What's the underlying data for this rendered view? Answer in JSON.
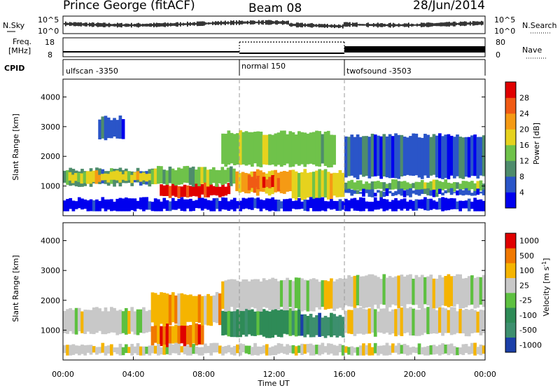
{
  "header": {
    "station": "Prince George (fitACF)",
    "beam": "Beam 08",
    "date": "28/Jun/2014"
  },
  "sky_panel": {
    "left_label": "N.Sky",
    "right_label": "N.Search",
    "left_ticks": [
      "10^5",
      "10^0"
    ],
    "right_ticks": [
      "10^5",
      "10^0"
    ]
  },
  "freq_panel": {
    "left_label_1": "Freq.",
    "left_label_2": "[MHz]",
    "right_label": "Nave",
    "left_ticks": [
      "18",
      "8"
    ],
    "right_ticks": [
      "80",
      "0"
    ]
  },
  "cpid_panel": {
    "label": "CPID",
    "modes": [
      "ulfscan -3350",
      "normal 150",
      "twofsound -3503"
    ]
  },
  "x_axis": {
    "label": "Time UT",
    "ticks": [
      "00:00",
      "04:00",
      "08:00",
      "12:00",
      "16:00",
      "20:00",
      "00:00"
    ]
  },
  "chart_data": [
    {
      "type": "heatmap",
      "name": "power",
      "ylabel": "Slant Range [km]",
      "y_ticks": [
        "1000",
        "2000",
        "3000",
        "4000"
      ],
      "colorbar_label": "Power [dB]",
      "colorbar_ticks": [
        "4",
        "8",
        "12",
        "16",
        "20",
        "24",
        "28"
      ],
      "colors": [
        "#0000ee",
        "#2a55c8",
        "#4e8c6c",
        "#6fc24a",
        "#e6d21e",
        "#f59a14",
        "#f05a14",
        "#e00000"
      ],
      "bands": [
        {
          "t0": 0.0,
          "t1": 5.5,
          "r0": 1050,
          "r1": 1550,
          "level": 2
        },
        {
          "t0": 0.3,
          "t1": 5.0,
          "r0": 1150,
          "r1": 1450,
          "level": 4
        },
        {
          "t0": 5.5,
          "t1": 9.5,
          "r0": 650,
          "r1": 1050,
          "level": 7
        },
        {
          "t0": 5.0,
          "t1": 9.8,
          "r0": 1050,
          "r1": 1600,
          "level": 3
        },
        {
          "t0": 9.8,
          "t1": 13.0,
          "r0": 750,
          "r1": 1500,
          "level": 5
        },
        {
          "t0": 10.5,
          "t1": 12.5,
          "r0": 900,
          "r1": 1300,
          "level": 6
        },
        {
          "t0": 13.0,
          "t1": 16.0,
          "r0": 600,
          "r1": 1500,
          "level": 4
        },
        {
          "t0": 16.0,
          "t1": 24.0,
          "r0": 850,
          "r1": 1150,
          "level": 3
        },
        {
          "t0": 16.0,
          "t1": 24.0,
          "r0": 700,
          "r1": 850,
          "level": 1
        },
        {
          "t0": 2.0,
          "t1": 3.5,
          "r0": 2600,
          "r1": 3300,
          "level": 1
        },
        {
          "t0": 9.0,
          "t1": 15.5,
          "r0": 1700,
          "r1": 2800,
          "level": 3
        },
        {
          "t0": 16.0,
          "t1": 24.0,
          "r0": 1300,
          "r1": 2700,
          "level": 1
        },
        {
          "t0": 0.0,
          "t1": 24.0,
          "r0": 180,
          "r1": 550,
          "level": 0
        }
      ]
    },
    {
      "type": "heatmap",
      "name": "velocity",
      "ylabel": "Slant Range [km]",
      "y_ticks": [
        "1000",
        "2000",
        "3000",
        "4000"
      ],
      "colorbar_label": "Velocity [m s^-1]",
      "colorbar_ticks": [
        "1000",
        "500",
        "100",
        "25",
        "-25",
        "-100",
        "-500",
        "-1000"
      ],
      "colors": [
        "#1b3fa8",
        "#3d8f6e",
        "#2e8b57",
        "#5dc040",
        "#c8c8c8",
        "#f5b400",
        "#f07800",
        "#e00000"
      ],
      "bands": [
        {
          "t0": 0.0,
          "t1": 5.0,
          "r0": 900,
          "r1": 1700,
          "level": 4
        },
        {
          "t0": 5.0,
          "t1": 8.0,
          "r0": 500,
          "r1": 1200,
          "level": 6
        },
        {
          "t0": 5.0,
          "t1": 9.0,
          "r0": 1200,
          "r1": 2200,
          "level": 5
        },
        {
          "t0": 9.0,
          "t1": 13.5,
          "r0": 800,
          "r1": 1700,
          "level": 2
        },
        {
          "t0": 13.5,
          "t1": 16.0,
          "r0": 800,
          "r1": 1500,
          "level": 1
        },
        {
          "t0": 16.0,
          "t1": 24.0,
          "r0": 850,
          "r1": 1700,
          "level": 4
        },
        {
          "t0": 9.0,
          "t1": 16.0,
          "r0": 1700,
          "r1": 2700,
          "level": 4
        },
        {
          "t0": 16.0,
          "t1": 24.0,
          "r0": 1800,
          "r1": 2800,
          "level": 4
        },
        {
          "t0": 0.0,
          "t1": 24.0,
          "r0": 180,
          "r1": 500,
          "level": 4
        }
      ]
    }
  ]
}
